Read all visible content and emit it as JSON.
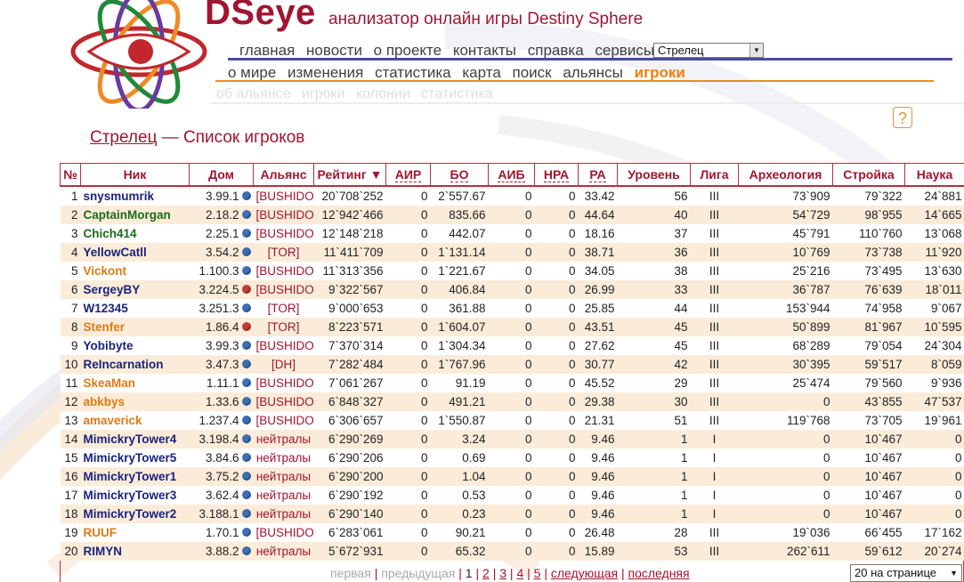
{
  "brand": {
    "name": "DSeye",
    "tagline": "анализатор онлайн игры Destiny Sphere"
  },
  "nav_main": [
    "главная",
    "новости",
    "о проекте",
    "контакты",
    "справка",
    "сервисы"
  ],
  "server_select": {
    "value": "Стрелец"
  },
  "nav_world": [
    "о мире",
    "изменения",
    "статистика",
    "карта",
    "поиск",
    "альянсы",
    "игроки"
  ],
  "nav_world_active": "игроки",
  "nav_sub": [
    "об альянсе",
    "игроки",
    "колонии",
    "статистика"
  ],
  "help_icon": "?",
  "page_title": {
    "server": "Стрелец",
    "rest": " — Список игроков"
  },
  "table": {
    "columns": [
      "№",
      "Ник",
      "Дом",
      "Альянс",
      "Рейтинг ▼",
      "АИР",
      "БО",
      "АИБ",
      "НРА",
      "РА",
      "Уровень",
      "Лига",
      "Археология",
      "Стройка",
      "Наука"
    ],
    "rows": [
      {
        "n": "1",
        "nick": "snysmumrik",
        "color": "#1a237e",
        "home": "3.99.1",
        "globe": "blue",
        "ally": "[BUSHIDO]",
        "rating": "20`708`252",
        "air": "0",
        "bo": "2`557.67",
        "aib": "0",
        "nra": "0",
        "ra": "33.42",
        "level": "56",
        "league": "III",
        "arch": "73`909",
        "build": "79`322",
        "sci": "24`881"
      },
      {
        "n": "2",
        "nick": "CaptainMorgan",
        "color": "#1b6b1b",
        "home": "2.18.2",
        "globe": "blue",
        "ally": "[BUSHIDO]",
        "rating": "12`942`466",
        "air": "0",
        "bo": "835.66",
        "aib": "0",
        "nra": "0",
        "ra": "44.64",
        "level": "40",
        "league": "III",
        "arch": "54`729",
        "build": "98`955",
        "sci": "14`665"
      },
      {
        "n": "3",
        "nick": "Chich414",
        "color": "#1b6b1b",
        "home": "2.25.1",
        "globe": "blue",
        "ally": "[BUSHIDO]",
        "rating": "12`148`218",
        "air": "0",
        "bo": "442.07",
        "aib": "0",
        "nra": "0",
        "ra": "18.16",
        "level": "37",
        "league": "III",
        "arch": "45`791",
        "build": "110`760",
        "sci": "13`068"
      },
      {
        "n": "4",
        "nick": "YellowCatll",
        "color": "#1a237e",
        "home": "3.54.2",
        "globe": "blue",
        "ally": "[TOR]",
        "rating": "11`411`709",
        "air": "0",
        "bo": "1`131.14",
        "aib": "0",
        "nra": "0",
        "ra": "38.71",
        "level": "36",
        "league": "III",
        "arch": "10`769",
        "build": "73`738",
        "sci": "11`920"
      },
      {
        "n": "5",
        "nick": "Vickont",
        "color": "#e07a10",
        "home": "1.100.3",
        "globe": "blue",
        "ally": "[BUSHIDO]",
        "rating": "11`313`356",
        "air": "0",
        "bo": "1`221.67",
        "aib": "0",
        "nra": "0",
        "ra": "34.05",
        "level": "38",
        "league": "III",
        "arch": "25`216",
        "build": "73`495",
        "sci": "13`630"
      },
      {
        "n": "6",
        "nick": "SergeyBY",
        "color": "#1a237e",
        "home": "3.224.5",
        "globe": "red",
        "ally": "[BUSHIDO]",
        "rating": "9`322`567",
        "air": "0",
        "bo": "406.84",
        "aib": "0",
        "nra": "0",
        "ra": "26.99",
        "level": "33",
        "league": "III",
        "arch": "36`787",
        "build": "76`639",
        "sci": "18`011"
      },
      {
        "n": "7",
        "nick": "W12345",
        "color": "#1a237e",
        "home": "3.251.3",
        "globe": "blue",
        "ally": "[TOR]",
        "rating": "9`000`653",
        "air": "0",
        "bo": "361.88",
        "aib": "0",
        "nra": "0",
        "ra": "25.85",
        "level": "44",
        "league": "III",
        "arch": "153`944",
        "build": "74`958",
        "sci": "9`067"
      },
      {
        "n": "8",
        "nick": "Stenfer",
        "color": "#e07a10",
        "home": "1.86.4",
        "globe": "red",
        "ally": "[TOR]",
        "rating": "8`223`571",
        "air": "0",
        "bo": "1`604.07",
        "aib": "0",
        "nra": "0",
        "ra": "43.51",
        "level": "45",
        "league": "III",
        "arch": "50`899",
        "build": "81`967",
        "sci": "10`595"
      },
      {
        "n": "9",
        "nick": "Yobibyte",
        "color": "#1a237e",
        "home": "3.99.3",
        "globe": "blue",
        "ally": "[BUSHIDO]",
        "rating": "7`370`314",
        "air": "0",
        "bo": "1`304.34",
        "aib": "0",
        "nra": "0",
        "ra": "27.62",
        "level": "45",
        "league": "III",
        "arch": "68`289",
        "build": "79`054",
        "sci": "24`304"
      },
      {
        "n": "10",
        "nick": "ReIncarnation",
        "color": "#1a237e",
        "home": "3.47.3",
        "globe": "blue",
        "ally": "[DH]",
        "rating": "7`282`484",
        "air": "0",
        "bo": "1`767.96",
        "aib": "0",
        "nra": "0",
        "ra": "30.77",
        "level": "42",
        "league": "III",
        "arch": "30`395",
        "build": "59`517",
        "sci": "8`059"
      },
      {
        "n": "11",
        "nick": "SkeaMan",
        "color": "#e07a10",
        "home": "1.11.1",
        "globe": "blue",
        "ally": "[BUSHIDO]",
        "rating": "7`061`267",
        "air": "0",
        "bo": "91.19",
        "aib": "0",
        "nra": "0",
        "ra": "45.52",
        "level": "29",
        "league": "III",
        "arch": "25`474",
        "build": "79`560",
        "sci": "9`936"
      },
      {
        "n": "12",
        "nick": "abkbys",
        "color": "#e07a10",
        "home": "1.33.6",
        "globe": "blue",
        "ally": "[BUSHIDO]",
        "rating": "6`848`327",
        "air": "0",
        "bo": "491.21",
        "aib": "0",
        "nra": "0",
        "ra": "29.38",
        "level": "30",
        "league": "III",
        "arch": "0",
        "build": "43`855",
        "sci": "47`537"
      },
      {
        "n": "13",
        "nick": "amaverick",
        "color": "#e07a10",
        "home": "1.237.4",
        "globe": "blue",
        "ally": "[BUSHIDO]",
        "rating": "6`306`657",
        "air": "0",
        "bo": "1`550.87",
        "aib": "0",
        "nra": "0",
        "ra": "21.31",
        "level": "51",
        "league": "III",
        "arch": "119`768",
        "build": "73`705",
        "sci": "19`961"
      },
      {
        "n": "14",
        "nick": "MimickryTower4",
        "color": "#1a237e",
        "home": "3.198.4",
        "globe": "blue",
        "ally": "нейтралы",
        "rating": "6`290`269",
        "air": "0",
        "bo": "3.24",
        "aib": "0",
        "nra": "0",
        "ra": "9.46",
        "level": "1",
        "league": "I",
        "arch": "0",
        "build": "10`467",
        "sci": "0"
      },
      {
        "n": "15",
        "nick": "MimickryTower5",
        "color": "#1a237e",
        "home": "3.84.6",
        "globe": "blue",
        "ally": "нейтралы",
        "rating": "6`290`206",
        "air": "0",
        "bo": "0.69",
        "aib": "0",
        "nra": "0",
        "ra": "9.46",
        "level": "1",
        "league": "I",
        "arch": "0",
        "build": "10`467",
        "sci": "0"
      },
      {
        "n": "16",
        "nick": "MimickryTower1",
        "color": "#1a237e",
        "home": "3.75.2",
        "globe": "blue",
        "ally": "нейтралы",
        "rating": "6`290`200",
        "air": "0",
        "bo": "1.04",
        "aib": "0",
        "nra": "0",
        "ra": "9.46",
        "level": "1",
        "league": "I",
        "arch": "0",
        "build": "10`467",
        "sci": "0"
      },
      {
        "n": "17",
        "nick": "MimickryTower3",
        "color": "#1a237e",
        "home": "3.62.4",
        "globe": "blue",
        "ally": "нейтралы",
        "rating": "6`290`192",
        "air": "0",
        "bo": "0.53",
        "aib": "0",
        "nra": "0",
        "ra": "9.46",
        "level": "1",
        "league": "I",
        "arch": "0",
        "build": "10`467",
        "sci": "0"
      },
      {
        "n": "18",
        "nick": "MimickryTower2",
        "color": "#1a237e",
        "home": "3.188.1",
        "globe": "blue",
        "ally": "нейтралы",
        "rating": "6`290`140",
        "air": "0",
        "bo": "0.23",
        "aib": "0",
        "nra": "0",
        "ra": "9.46",
        "level": "1",
        "league": "I",
        "arch": "0",
        "build": "10`467",
        "sci": "0"
      },
      {
        "n": "19",
        "nick": "RUUF",
        "color": "#e07a10",
        "home": "1.70.1",
        "globe": "blue",
        "ally": "[BUSHIDO]",
        "rating": "6`283`061",
        "air": "0",
        "bo": "90.21",
        "aib": "0",
        "nra": "0",
        "ra": "26.48",
        "level": "28",
        "league": "III",
        "arch": "19`036",
        "build": "66`455",
        "sci": "17`162"
      },
      {
        "n": "20",
        "nick": "RIMYN",
        "color": "#1a237e",
        "home": "3.88.2",
        "globe": "blue",
        "ally": "нейтралы",
        "rating": "5`672`931",
        "air": "0",
        "bo": "65.32",
        "aib": "0",
        "nra": "0",
        "ra": "15.89",
        "level": "53",
        "league": "III",
        "arch": "262`611",
        "build": "59`612",
        "sci": "20`274"
      }
    ]
  },
  "pager": {
    "first": "первая",
    "prev": "предыдущая",
    "pages": [
      "1",
      "2",
      "3",
      "4",
      "5"
    ],
    "current": "1",
    "next": "следующая",
    "last": "последняя",
    "per_page": "20 на странице"
  }
}
